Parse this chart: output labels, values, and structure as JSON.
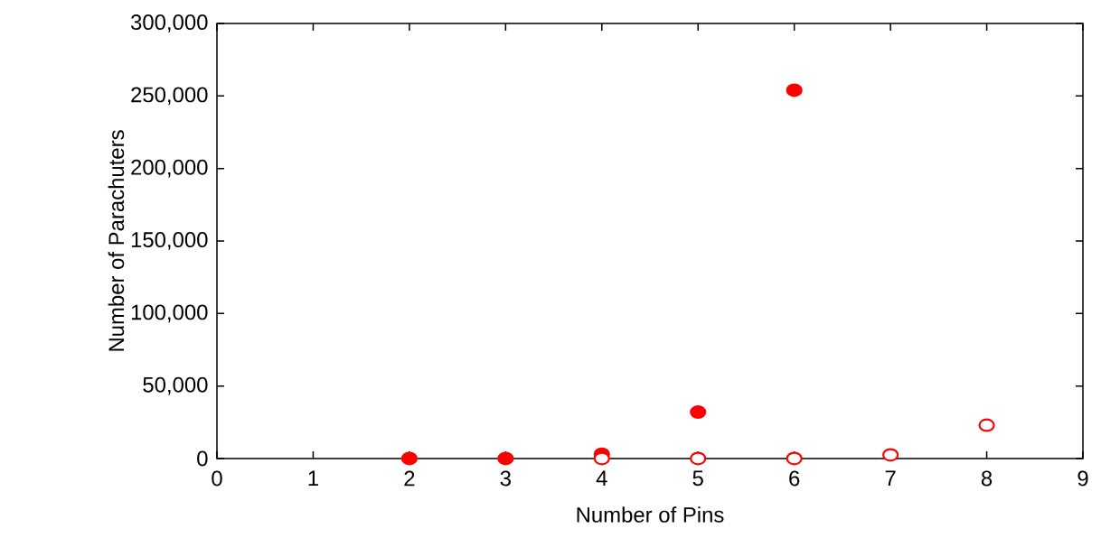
{
  "chart_data": {
    "type": "scatter",
    "xlabel": "Number of Pins",
    "ylabel": "Number of Parachuters",
    "xlim": [
      0,
      9
    ],
    "xticks": [
      0,
      1,
      2,
      3,
      4,
      5,
      6,
      7,
      8,
      9
    ],
    "ylim": [
      0,
      300000
    ],
    "yticks": [
      {
        "value": 0,
        "label": "0"
      },
      {
        "value": 50000,
        "label": "50,000"
      },
      {
        "value": 100000,
        "label": "100,000"
      },
      {
        "value": 150000,
        "label": "150,000"
      },
      {
        "value": 200000,
        "label": "200,000"
      },
      {
        "value": 250000,
        "label": "250,000"
      },
      {
        "value": 300000,
        "label": "300,000"
      }
    ],
    "grid": false,
    "marker": "circle",
    "series": [
      {
        "color": "#ff0000",
        "x": [
          2,
          3,
          4,
          5,
          6
        ],
        "values": [
          0,
          0,
          3000,
          32000,
          254000
        ]
      },
      {
        "color": "#ff0000",
        "marker": "circle",
        "x": [
          4,
          5,
          6,
          7,
          8
        ],
        "values": [
          0,
          0,
          0,
          2500,
          23000
        ]
      }
    ]
  }
}
